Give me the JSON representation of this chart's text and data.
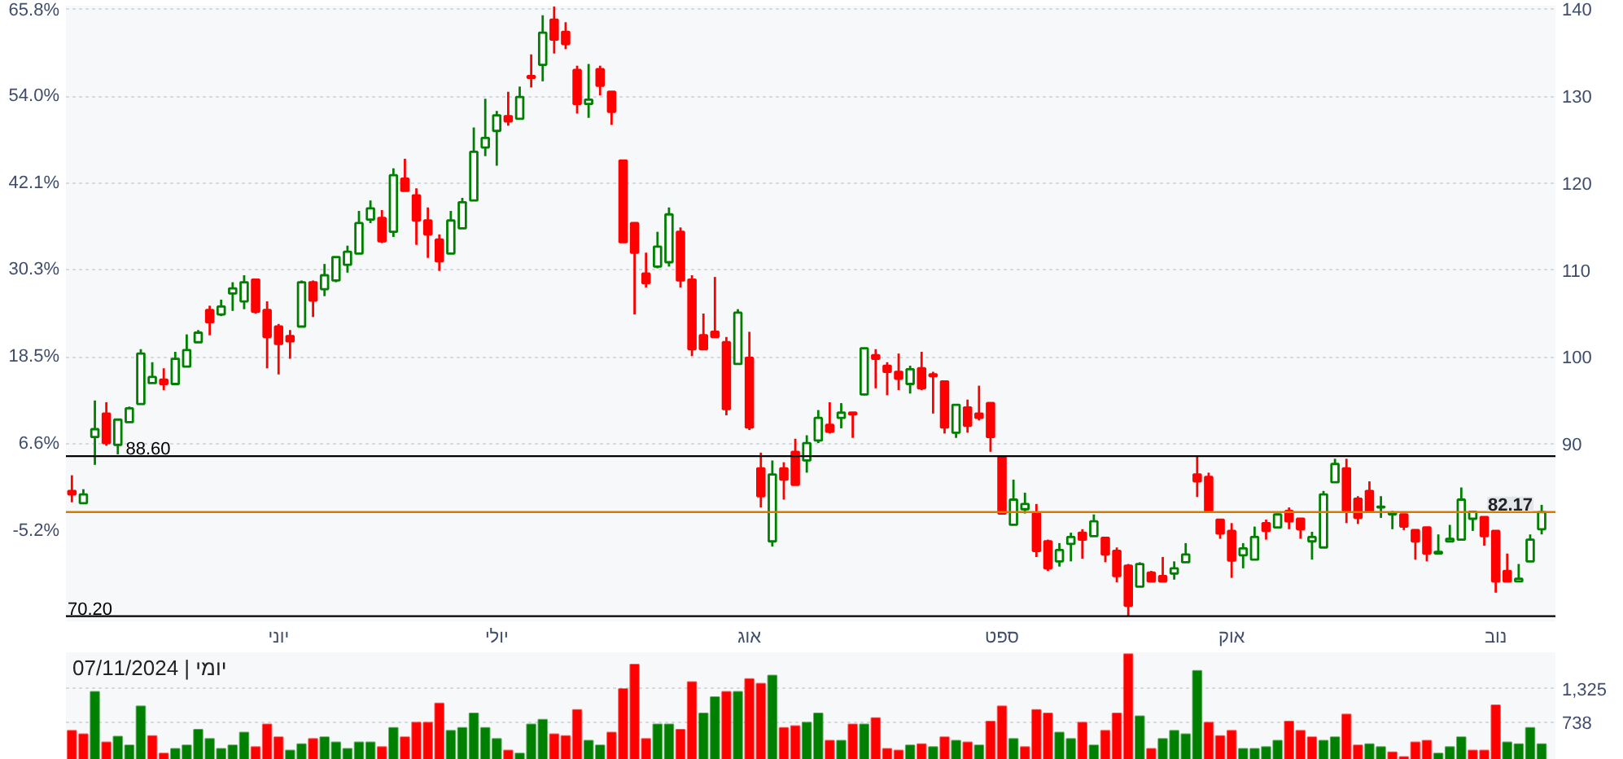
{
  "chart_data": [
    {
      "type": "candlestick",
      "categories": [
        null,
        null,
        null,
        null,
        null,
        null,
        null,
        null,
        null,
        null,
        null,
        null,
        null,
        null,
        null,
        null,
        null,
        null,
        "יוני",
        null,
        null,
        null,
        null,
        null,
        null,
        null,
        null,
        null,
        null,
        null,
        null,
        null,
        null,
        null,
        null,
        null,
        null,
        "יולי",
        null,
        null,
        null,
        null,
        null,
        null,
        null,
        null,
        null,
        null,
        null,
        null,
        null,
        null,
        null,
        null,
        null,
        null,
        null,
        null,
        null,
        "אוג",
        null,
        null,
        null,
        null,
        null,
        null,
        null,
        null,
        null,
        null,
        null,
        null,
        null,
        null,
        null,
        null,
        null,
        null,
        null,
        null,
        null,
        "ספט",
        null,
        null,
        null,
        null,
        null,
        null,
        null,
        null,
        null,
        null,
        null,
        null,
        null,
        null,
        null,
        null,
        null,
        null,
        null,
        "אוק",
        null,
        null,
        null,
        null,
        null,
        null,
        null,
        null,
        null,
        null,
        null,
        null,
        null,
        null,
        null,
        null,
        null,
        null,
        null,
        null,
        null,
        null,
        "נוב",
        null,
        null,
        null,
        null
      ],
      "ohlc": [
        [
          84.6,
          86.4,
          83.3,
          84.2
        ],
        [
          83.2,
          84.8,
          83.2,
          84.2
        ],
        [
          90.8,
          95.0,
          87.6,
          91.7
        ],
        [
          93.5,
          94.8,
          89.8,
          90.1
        ],
        [
          89.9,
          92.8,
          88.8,
          92.8
        ],
        [
          92.5,
          94.3,
          92.5,
          94.1
        ],
        [
          94.6,
          100.9,
          94.6,
          100.4
        ],
        [
          97.0,
          99.4,
          97.0,
          97.7
        ],
        [
          97.4,
          98.7,
          96.2,
          96.9
        ],
        [
          96.9,
          100.6,
          96.9,
          99.8
        ],
        [
          98.9,
          102.6,
          98.9,
          100.8
        ],
        [
          101.7,
          103.1,
          101.7,
          102.8
        ],
        [
          105.4,
          105.9,
          102.5,
          104.0
        ],
        [
          104.9,
          106.6,
          104.7,
          105.8
        ],
        [
          107.3,
          108.6,
          105.3,
          107.9
        ],
        [
          106.4,
          109.4,
          105.5,
          108.6
        ],
        [
          108.9,
          108.9,
          105.0,
          105.2
        ],
        [
          105.4,
          106.4,
          98.7,
          102.3
        ],
        [
          103.5,
          103.8,
          98.0,
          101.5
        ],
        [
          102.4,
          103.1,
          99.8,
          101.8
        ],
        [
          103.5,
          108.8,
          103.5,
          108.6
        ],
        [
          108.6,
          108.8,
          104.6,
          106.5
        ],
        [
          107.8,
          110.7,
          107.0,
          109.4
        ],
        [
          108.8,
          111.5,
          108.6,
          111.5
        ],
        [
          110.6,
          112.8,
          109.7,
          112.1
        ],
        [
          111.9,
          116.8,
          111.9,
          115.4
        ],
        [
          115.8,
          118.0,
          115.4,
          117.1
        ],
        [
          116.0,
          116.9,
          113.1,
          113.3
        ],
        [
          114.4,
          121.7,
          113.8,
          120.9
        ],
        [
          120.5,
          122.8,
          119.1,
          119.1
        ],
        [
          118.6,
          119.4,
          112.9,
          115.7
        ],
        [
          115.7,
          117.2,
          111.4,
          114.1
        ],
        [
          113.5,
          114.1,
          109.9,
          111.0
        ],
        [
          111.9,
          116.8,
          111.9,
          115.7
        ],
        [
          114.8,
          118.3,
          114.8,
          117.8
        ],
        [
          118.0,
          126.4,
          118.0,
          123.6
        ],
        [
          124.1,
          129.7,
          123.1,
          125.2
        ],
        [
          126.0,
          128.3,
          122.0,
          127.8
        ],
        [
          127.7,
          130.5,
          126.6,
          127.1
        ],
        [
          127.4,
          131.1,
          127.4,
          129.9
        ],
        [
          132.3,
          134.8,
          131.0,
          132.1
        ],
        [
          133.6,
          139.3,
          131.7,
          137.3
        ],
        [
          138.8,
          140.3,
          134.9,
          136.5
        ],
        [
          137.4,
          138.5,
          135.4,
          136.0
        ],
        [
          133.0,
          133.5,
          128.0,
          129.1
        ],
        [
          129.1,
          133.7,
          127.5,
          129.6
        ],
        [
          133.1,
          133.5,
          130.1,
          131.2
        ],
        [
          130.5,
          130.5,
          126.7,
          128.2
        ],
        [
          122.6,
          122.6,
          113.2,
          113.2
        ],
        [
          115.4,
          115.5,
          104.9,
          112.0
        ],
        [
          109.6,
          112.0,
          108.0,
          108.5
        ],
        [
          110.4,
          114.4,
          110.2,
          112.7
        ],
        [
          110.9,
          117.2,
          110.4,
          116.4
        ],
        [
          114.4,
          114.9,
          108.0,
          108.8
        ],
        [
          108.9,
          109.4,
          100.1,
          100.9
        ],
        [
          102.5,
          105.0,
          100.9,
          100.9
        ],
        [
          102.9,
          109.2,
          102.3,
          102.3
        ],
        [
          101.7,
          102.3,
          93.3,
          94.0
        ],
        [
          99.2,
          105.5,
          99.2,
          105.1
        ],
        [
          99.9,
          102.9,
          91.6,
          91.9
        ],
        [
          87.2,
          89.0,
          82.7,
          84.0
        ],
        [
          78.8,
          88.1,
          78.2,
          86.5
        ],
        [
          87.2,
          87.9,
          83.6,
          85.9
        ],
        [
          89.1,
          90.6,
          85.3,
          85.3
        ],
        [
          88.1,
          91.0,
          86.7,
          90.1
        ],
        [
          90.4,
          93.9,
          90.1,
          93.0
        ],
        [
          92.2,
          94.8,
          91.2,
          91.4
        ],
        [
          93.0,
          94.7,
          91.8,
          93.6
        ],
        [
          93.6,
          93.6,
          90.7,
          93.4
        ],
        [
          95.7,
          101.0,
          95.6,
          101.0
        ],
        [
          100.2,
          100.9,
          96.4,
          99.8
        ],
        [
          99.0,
          99.4,
          95.6,
          98.3
        ],
        [
          98.3,
          100.4,
          96.2,
          97.5
        ],
        [
          96.9,
          99.0,
          95.8,
          98.6
        ],
        [
          98.7,
          100.6,
          96.2,
          96.4
        ],
        [
          98.0,
          98.3,
          93.5,
          97.8
        ],
        [
          97.2,
          97.2,
          91.2,
          91.9
        ],
        [
          91.3,
          94.5,
          90.7,
          94.5
        ],
        [
          94.2,
          95.1,
          91.3,
          92.1
        ],
        [
          93.5,
          96.7,
          92.7,
          93.0
        ],
        [
          94.7,
          94.8,
          89.1,
          90.8
        ],
        [
          88.5,
          88.5,
          81.9,
          82.0
        ],
        [
          80.7,
          85.9,
          80.7,
          83.6
        ],
        [
          82.5,
          84.4,
          82.0,
          83.1
        ],
        [
          82.0,
          83.1,
          77.0,
          77.7
        ],
        [
          78.8,
          79.0,
          75.4,
          75.7
        ],
        [
          76.5,
          78.6,
          75.9,
          77.8
        ],
        [
          78.5,
          79.8,
          76.5,
          79.3
        ],
        [
          79.8,
          80.2,
          76.8,
          79.0
        ],
        [
          79.4,
          81.9,
          79.4,
          81.1
        ],
        [
          79.2,
          79.2,
          76.4,
          77.3
        ],
        [
          77.7,
          78.1,
          74.1,
          74.8
        ],
        [
          76.0,
          76.2,
          70.2,
          71.4
        ],
        [
          73.6,
          76.4,
          73.6,
          76.2
        ],
        [
          75.2,
          75.4,
          74.2,
          74.2
        ],
        [
          74.8,
          77.0,
          74.2,
          74.2
        ],
        [
          75.1,
          76.5,
          74.4,
          75.7
        ],
        [
          76.4,
          78.6,
          76.4,
          77.3
        ],
        [
          86.5,
          88.6,
          83.9,
          85.7
        ],
        [
          86.2,
          86.7,
          82.3,
          82.3
        ],
        [
          81.3,
          81.3,
          79.1,
          79.7
        ],
        [
          80.0,
          80.9,
          74.6,
          76.6
        ],
        [
          77.2,
          78.6,
          75.7,
          78.0
        ],
        [
          76.7,
          80.5,
          76.7,
          79.3
        ],
        [
          80.9,
          81.3,
          79.0,
          80.0
        ],
        [
          80.4,
          82.0,
          80.4,
          81.9
        ],
        [
          82.3,
          82.7,
          80.2,
          81.1
        ],
        [
          81.4,
          81.4,
          79.1,
          80.2
        ],
        [
          78.8,
          79.9,
          76.7,
          79.3
        ],
        [
          78.1,
          84.6,
          78.1,
          84.2
        ],
        [
          85.6,
          88.3,
          85.6,
          87.7
        ],
        [
          87.2,
          88.3,
          80.9,
          82.3
        ],
        [
          83.7,
          84.0,
          80.8,
          81.5
        ],
        [
          84.6,
          85.7,
          82.3,
          82.3
        ],
        [
          82.7,
          84.0,
          81.5,
          82.8
        ],
        [
          81.9,
          82.3,
          80.2,
          82.1
        ],
        [
          81.9,
          81.9,
          80.1,
          80.5
        ],
        [
          80.1,
          80.1,
          76.7,
          78.8
        ],
        [
          80.4,
          80.4,
          76.5,
          77.4
        ],
        [
          77.4,
          79.6,
          77.4,
          77.6
        ],
        [
          78.8,
          80.7,
          78.8,
          79.1
        ],
        [
          79.0,
          85.0,
          79.0,
          83.6
        ],
        [
          81.4,
          82.3,
          80.0,
          82.2
        ],
        [
          81.6,
          81.6,
          78.3,
          79.4
        ],
        [
          80.0,
          80.0,
          72.9,
          74.2
        ],
        [
          75.4,
          77.4,
          74.2,
          74.2
        ],
        [
          74.2,
          76.2,
          74.2,
          74.5
        ],
        [
          76.5,
          79.6,
          76.5,
          79.0
        ],
        [
          80.2,
          83.0,
          79.6,
          82.17
        ]
      ],
      "ylim": [
        69.6,
        140.4
      ],
      "yticks": [
        90,
        100,
        110,
        120,
        130,
        140
      ],
      "y2lim": [
        -17.55,
        66.27
      ],
      "y2ticks": [
        {
          "value": -5.2,
          "label": "-5.2%"
        },
        {
          "value": 6.6,
          "label": "6.6%"
        },
        {
          "value": 18.5,
          "label": "18.5%"
        },
        {
          "value": 30.3,
          "label": "30.3%"
        },
        {
          "value": 42.1,
          "label": "42.1%"
        },
        {
          "value": 54.0,
          "label": "54.0%"
        },
        {
          "value": 65.8,
          "label": "65.8%"
        }
      ],
      "ref_lines": [
        {
          "axis": "y",
          "value": 88.6,
          "label": "88.60"
        },
        {
          "axis": "y",
          "value": 70.2,
          "label": "70.20"
        },
        {
          "axis": "y",
          "value": 82.17,
          "label": "82.17",
          "color": "#d97a00"
        }
      ],
      "grid": "y"
    },
    {
      "type": "bar",
      "categories": [
        null,
        null,
        null,
        null,
        null,
        null,
        null,
        null,
        null,
        null,
        null,
        null,
        null,
        null,
        null,
        null,
        null,
        null,
        null,
        null,
        null,
        null,
        null,
        null,
        null,
        null,
        null,
        null,
        null,
        null,
        null,
        null,
        null,
        null,
        null,
        null,
        null,
        null,
        null,
        null,
        null,
        null,
        null,
        null,
        null,
        null,
        null,
        null,
        null,
        null,
        null,
        null,
        null,
        null,
        null,
        null,
        null,
        null,
        null,
        null,
        null,
        null,
        null,
        null,
        null,
        null,
        null,
        null,
        null,
        null,
        null,
        null,
        null,
        null,
        null,
        null,
        null,
        null,
        null,
        null,
        null,
        null,
        null,
        null,
        null,
        null,
        null,
        null,
        null,
        null,
        null,
        null,
        null,
        null,
        null,
        null,
        null,
        null,
        null,
        null,
        null,
        null,
        null,
        null,
        null,
        null,
        null,
        null,
        null,
        null,
        null,
        null,
        null,
        null,
        null,
        null,
        null,
        null,
        null,
        null,
        null,
        null,
        null,
        null,
        null,
        null,
        null,
        null,
        null
      ],
      "values": [
        600,
        540,
        1270,
        400,
        500,
        350,
        1020,
        510,
        210,
        290,
        350,
        620,
        460,
        290,
        350,
        570,
        320,
        710,
        490,
        260,
        370,
        460,
        490,
        400,
        290,
        400,
        400,
        320,
        650,
        490,
        740,
        740,
        1070,
        600,
        650,
        900,
        650,
        460,
        260,
        210,
        710,
        790,
        540,
        510,
        960,
        430,
        350,
        570,
        1320,
        1740,
        460,
        710,
        710,
        620,
        1440,
        900,
        1180,
        1270,
        1270,
        1490,
        1410,
        1550,
        650,
        680,
        740,
        900,
        430,
        430,
        710,
        710,
        820,
        290,
        260,
        350,
        370,
        320,
        490,
        430,
        400,
        350,
        760,
        1020,
        460,
        320,
        960,
        900,
        570,
        460,
        740,
        350,
        600,
        900,
        1920,
        850,
        290,
        460,
        600,
        540,
        1630,
        740,
        510,
        600,
        290,
        290,
        320,
        430,
        760,
        600,
        490,
        430,
        490,
        880,
        350,
        370,
        320,
        230,
        150,
        400,
        430,
        210,
        320,
        490,
        260,
        260,
        1040,
        400,
        370,
        650,
        370
      ],
      "colors": [
        "#ff0000",
        "#ff0000",
        "#008000",
        "#ff0000",
        "#008000",
        "#008000",
        "#008000",
        "#ff0000",
        "#ff0000",
        "#008000",
        "#008000",
        "#008000",
        "#008000",
        "#008000",
        "#008000",
        "#008000",
        "#ff0000",
        "#ff0000",
        "#ff0000",
        "#008000",
        "#008000",
        "#ff0000",
        "#008000",
        "#008000",
        "#008000",
        "#008000",
        "#008000",
        "#ff0000",
        "#008000",
        "#ff0000",
        "#ff0000",
        "#ff0000",
        "#ff0000",
        "#008000",
        "#008000",
        "#008000",
        "#008000",
        "#008000",
        "#ff0000",
        "#008000",
        "#008000",
        "#008000",
        "#ff0000",
        "#ff0000",
        "#ff0000",
        "#008000",
        "#008000",
        "#ff0000",
        "#ff0000",
        "#ff0000",
        "#ff0000",
        "#008000",
        "#008000",
        "#ff0000",
        "#ff0000",
        "#008000",
        "#008000",
        "#ff0000",
        "#008000",
        "#ff0000",
        "#ff0000",
        "#008000",
        "#ff0000",
        "#ff0000",
        "#008000",
        "#008000",
        "#ff0000",
        "#008000",
        "#ff0000",
        "#008000",
        "#ff0000",
        "#ff0000",
        "#ff0000",
        "#008000",
        "#ff0000",
        "#008000",
        "#ff0000",
        "#008000",
        "#ff0000",
        "#008000",
        "#ff0000",
        "#ff0000",
        "#008000",
        "#ff0000",
        "#ff0000",
        "#ff0000",
        "#008000",
        "#008000",
        "#ff0000",
        "#008000",
        "#ff0000",
        "#ff0000",
        "#ff0000",
        "#008000",
        "#ff0000",
        "#008000",
        "#008000",
        "#008000",
        "#008000",
        "#ff0000",
        "#ff0000",
        "#ff0000",
        "#008000",
        "#008000",
        "#008000",
        "#008000",
        "#ff0000",
        "#ff0000",
        "#ff0000",
        "#008000",
        "#008000",
        "#ff0000",
        "#ff0000",
        "#008000",
        "#008000",
        "#ff0000",
        "#ff0000",
        "#ff0000",
        "#ff0000",
        "#008000",
        "#008000",
        "#008000",
        "#ff0000",
        "#ff0000",
        "#ff0000",
        "#008000",
        "#008000",
        "#008000",
        "#008000"
      ],
      "ylim": [
        100,
        1950
      ],
      "yticks": [
        {
          "value": 738,
          "label": "738"
        },
        {
          "value": 1325,
          "label": "1,325"
        }
      ],
      "tick_labels": "y",
      "annotations": [
        "07/11/2024 | יומי"
      ],
      "grid": "y"
    }
  ]
}
